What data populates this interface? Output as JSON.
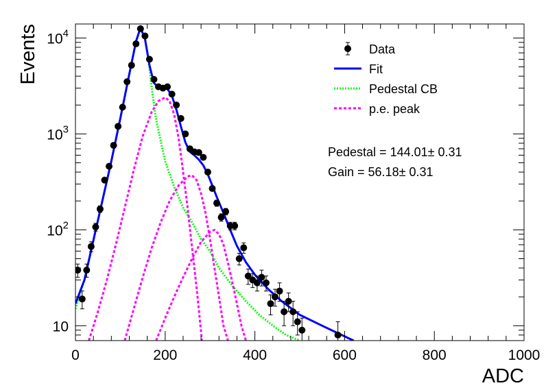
{
  "chart_data": {
    "type": "scatter",
    "xlabel": "ADC",
    "ylabel": "Events",
    "xlim": [
      0,
      1000
    ],
    "ylim": [
      7,
      14000
    ],
    "y_scale": "log",
    "grid": false,
    "legend_placement": "top-right",
    "x_ticks": [
      {
        "value": 0,
        "label": "0"
      },
      {
        "value": 200,
        "label": "200"
      },
      {
        "value": 400,
        "label": "400"
      },
      {
        "value": 600,
        "label": "600"
      },
      {
        "value": 800,
        "label": "800"
      },
      {
        "value": 1000,
        "label": "1000"
      }
    ],
    "y_ticks": [
      {
        "value": 10,
        "base": "10",
        "exp": ""
      },
      {
        "value": 100,
        "base": "10",
        "exp": "2"
      },
      {
        "value": 1000,
        "base": "10",
        "exp": "3"
      },
      {
        "value": 10000,
        "base": "10",
        "exp": "4"
      }
    ],
    "legend": [
      {
        "label": "Data",
        "style": "marker"
      },
      {
        "label": "Fit",
        "style": "solid",
        "color": "#0000ff"
      },
      {
        "label": "Pedestal CB",
        "style": "dotted",
        "color": "#00ff00"
      },
      {
        "label": "p.e. peak",
        "style": "dashed",
        "color": "#ff00ff"
      }
    ],
    "stats": [
      {
        "text": "Pedestal = 144.01± 0.31"
      },
      {
        "text": "Gain = 56.18± 0.31"
      }
    ],
    "colors": {
      "data": "#000000",
      "fit": "#0000ff",
      "pedestal": "#00ff00",
      "pe_peak": "#ff00ff"
    },
    "series": [
      {
        "name": "Data",
        "kind": "points",
        "points": [
          [
            5,
            38,
            6
          ],
          [
            15,
            19,
            4
          ],
          [
            25,
            38,
            6
          ],
          [
            35,
            67,
            8
          ],
          [
            45,
            107,
            10
          ],
          [
            55,
            165,
            13
          ],
          [
            65,
            330,
            18
          ],
          [
            75,
            460,
            21
          ],
          [
            85,
            760,
            28
          ],
          [
            95,
            1200,
            35
          ],
          [
            105,
            1900,
            44
          ],
          [
            115,
            3500,
            59
          ],
          [
            125,
            5200,
            72
          ],
          [
            135,
            8700,
            93
          ],
          [
            145,
            12500,
            112
          ],
          [
            155,
            10500,
            102
          ],
          [
            165,
            6000,
            77
          ],
          [
            175,
            3700,
            61
          ],
          [
            185,
            3100,
            56
          ],
          [
            195,
            3000,
            55
          ],
          [
            205,
            3100,
            56
          ],
          [
            215,
            2600,
            51
          ],
          [
            225,
            2000,
            45
          ],
          [
            235,
            1450,
            38
          ],
          [
            245,
            1000,
            32
          ],
          [
            255,
            700,
            26
          ],
          [
            265,
            650,
            25
          ],
          [
            275,
            640,
            25
          ],
          [
            285,
            570,
            24
          ],
          [
            295,
            400,
            20
          ],
          [
            305,
            270,
            16
          ],
          [
            315,
            190,
            14
          ],
          [
            325,
            135,
            12
          ],
          [
            335,
            155,
            12
          ],
          [
            345,
            110,
            10
          ],
          [
            355,
            110,
            10
          ],
          [
            365,
            50,
            7
          ],
          [
            375,
            65,
            8
          ],
          [
            385,
            33,
            6
          ],
          [
            395,
            30,
            5
          ],
          [
            405,
            28,
            5
          ],
          [
            415,
            32,
            6
          ],
          [
            425,
            28,
            5
          ],
          [
            435,
            17,
            4
          ],
          [
            445,
            20,
            4
          ],
          [
            455,
            23,
            5
          ],
          [
            465,
            14,
            4
          ],
          [
            475,
            18,
            4
          ],
          [
            485,
            14,
            4
          ],
          [
            495,
            11,
            3
          ],
          [
            505,
            9,
            3
          ],
          [
            585,
            8,
            3
          ]
        ]
      },
      {
        "name": "Fit",
        "kind": "line",
        "points": [
          [
            0,
            17
          ],
          [
            20,
            30
          ],
          [
            40,
            78
          ],
          [
            60,
            200
          ],
          [
            80,
            520
          ],
          [
            100,
            1450
          ],
          [
            120,
            4200
          ],
          [
            135,
            9200
          ],
          [
            145,
            12800
          ],
          [
            155,
            9800
          ],
          [
            165,
            5200
          ],
          [
            175,
            3400
          ],
          [
            185,
            3050
          ],
          [
            195,
            3050
          ],
          [
            205,
            2950
          ],
          [
            215,
            2500
          ],
          [
            225,
            1800
          ],
          [
            235,
            1200
          ],
          [
            245,
            820
          ],
          [
            255,
            650
          ],
          [
            265,
            600
          ],
          [
            275,
            540
          ],
          [
            285,
            470
          ],
          [
            295,
            380
          ],
          [
            305,
            290
          ],
          [
            315,
            220
          ],
          [
            330,
            150
          ],
          [
            345,
            100
          ],
          [
            360,
            68
          ],
          [
            380,
            46
          ],
          [
            400,
            34
          ],
          [
            430,
            24
          ],
          [
            460,
            18
          ],
          [
            500,
            13
          ],
          [
            550,
            10
          ],
          [
            620,
            7
          ]
        ]
      },
      {
        "name": "Pedestal CB",
        "kind": "line",
        "points": [
          [
            0,
            15
          ],
          [
            20,
            30
          ],
          [
            40,
            78
          ],
          [
            60,
            200
          ],
          [
            80,
            520
          ],
          [
            100,
            1450
          ],
          [
            120,
            4200
          ],
          [
            135,
            9200
          ],
          [
            145,
            12800
          ],
          [
            155,
            9600
          ],
          [
            162,
            6500
          ],
          [
            170,
            3000
          ],
          [
            180,
            1400
          ],
          [
            200,
            520
          ],
          [
            220,
            280
          ],
          [
            240,
            170
          ],
          [
            260,
            120
          ],
          [
            280,
            80
          ],
          [
            300,
            60
          ],
          [
            320,
            40
          ],
          [
            350,
            26
          ],
          [
            380,
            18
          ],
          [
            410,
            13
          ],
          [
            440,
            10
          ],
          [
            470,
            8
          ],
          [
            500,
            7
          ]
        ]
      },
      {
        "name": "p.e. peak 1",
        "kind": "line",
        "points": [
          [
            30,
            7
          ],
          [
            50,
            14
          ],
          [
            70,
            30
          ],
          [
            90,
            70
          ],
          [
            110,
            170
          ],
          [
            130,
            420
          ],
          [
            150,
            950
          ],
          [
            170,
            1700
          ],
          [
            185,
            2200
          ],
          [
            200,
            2400
          ],
          [
            210,
            2200
          ],
          [
            220,
            1600
          ],
          [
            230,
            900
          ],
          [
            240,
            400
          ],
          [
            250,
            170
          ],
          [
            260,
            65
          ],
          [
            270,
            25
          ],
          [
            282,
            7
          ]
        ]
      },
      {
        "name": "p.e. peak 2",
        "kind": "line",
        "points": [
          [
            110,
            7
          ],
          [
            130,
            15
          ],
          [
            150,
            32
          ],
          [
            170,
            65
          ],
          [
            190,
            120
          ],
          [
            210,
            200
          ],
          [
            230,
            290
          ],
          [
            250,
            360
          ],
          [
            260,
            370
          ],
          [
            270,
            330
          ],
          [
            280,
            240
          ],
          [
            290,
            150
          ],
          [
            300,
            80
          ],
          [
            310,
            40
          ],
          [
            320,
            20
          ],
          [
            330,
            10
          ],
          [
            340,
            7
          ]
        ]
      },
      {
        "name": "p.e. peak 3",
        "kind": "line",
        "points": [
          [
            180,
            7
          ],
          [
            200,
            12
          ],
          [
            220,
            20
          ],
          [
            240,
            32
          ],
          [
            260,
            50
          ],
          [
            280,
            75
          ],
          [
            300,
            95
          ],
          [
            310,
            100
          ],
          [
            320,
            90
          ],
          [
            330,
            70
          ],
          [
            340,
            45
          ],
          [
            350,
            28
          ],
          [
            360,
            17
          ],
          [
            370,
            10
          ],
          [
            380,
            7
          ]
        ]
      }
    ]
  }
}
